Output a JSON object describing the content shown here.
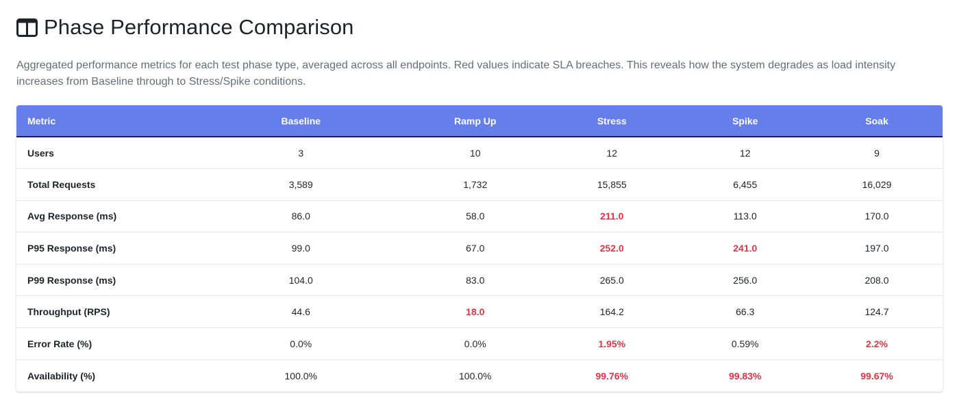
{
  "header": {
    "title": "Phase Performance Comparison",
    "icon": "columns-icon",
    "description": "Aggregated performance metrics for each test phase type, averaged across all endpoints. Red values indicate SLA breaches. This reveals how the system degrades as load intensity increases from Baseline through to Stress/Spike conditions."
  },
  "colors": {
    "header_bg": "#667eea",
    "breach": "#dc3545"
  },
  "table": {
    "columns": [
      "Metric",
      "Baseline",
      "Ramp Up",
      "Stress",
      "Spike",
      "Soak"
    ],
    "rows": [
      {
        "metric": "Users",
        "values": [
          "3",
          "10",
          "12",
          "12",
          "9"
        ],
        "breach": [
          false,
          false,
          false,
          false,
          false
        ]
      },
      {
        "metric": "Total Requests",
        "values": [
          "3,589",
          "1,732",
          "15,855",
          "6,455",
          "16,029"
        ],
        "breach": [
          false,
          false,
          false,
          false,
          false
        ]
      },
      {
        "metric": "Avg Response (ms)",
        "values": [
          "86.0",
          "58.0",
          "211.0",
          "113.0",
          "170.0"
        ],
        "breach": [
          false,
          false,
          true,
          false,
          false
        ]
      },
      {
        "metric": "P95 Response (ms)",
        "values": [
          "99.0",
          "67.0",
          "252.0",
          "241.0",
          "197.0"
        ],
        "breach": [
          false,
          false,
          true,
          true,
          false
        ]
      },
      {
        "metric": "P99 Response (ms)",
        "values": [
          "104.0",
          "83.0",
          "265.0",
          "256.0",
          "208.0"
        ],
        "breach": [
          false,
          false,
          false,
          false,
          false
        ]
      },
      {
        "metric": "Throughput (RPS)",
        "values": [
          "44.6",
          "18.0",
          "164.2",
          "66.3",
          "124.7"
        ],
        "breach": [
          false,
          true,
          false,
          false,
          false
        ]
      },
      {
        "metric": "Error Rate (%)",
        "values": [
          "0.0%",
          "0.0%",
          "1.95%",
          "0.59%",
          "2.2%"
        ],
        "breach": [
          false,
          false,
          true,
          false,
          true
        ]
      },
      {
        "metric": "Availability (%)",
        "values": [
          "100.0%",
          "100.0%",
          "99.76%",
          "99.83%",
          "99.67%"
        ],
        "breach": [
          false,
          false,
          true,
          true,
          true
        ]
      }
    ]
  }
}
